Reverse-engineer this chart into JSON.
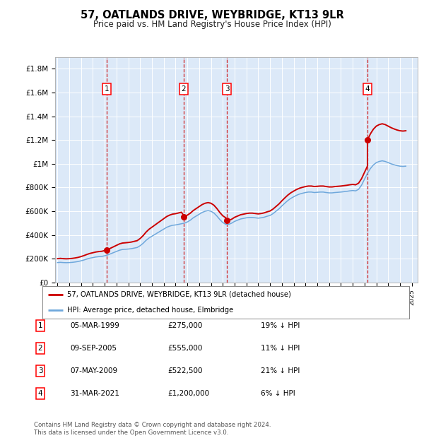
{
  "title": "57, OATLANDS DRIVE, WEYBRIDGE, KT13 9LR",
  "subtitle": "Price paid vs. HM Land Registry's House Price Index (HPI)",
  "background_color": "#ffffff",
  "plot_bg_color": "#dce9f8",
  "ylabel_ticks": [
    "£0",
    "£200K",
    "£400K",
    "£600K",
    "£800K",
    "£1M",
    "£1.2M",
    "£1.4M",
    "£1.6M",
    "£1.8M"
  ],
  "ytick_values": [
    0,
    200000,
    400000,
    600000,
    800000,
    1000000,
    1200000,
    1400000,
    1600000,
    1800000
  ],
  "ylim": [
    0,
    1900000
  ],
  "xlim_start": 1994.8,
  "xlim_end": 2025.5,
  "purchases": [
    {
      "label": "1",
      "date": 1999.18,
      "price": 275000,
      "pct": "19% ↓ HPI",
      "date_str": "05-MAR-1999"
    },
    {
      "label": "2",
      "date": 2005.69,
      "price": 555000,
      "pct": "11% ↓ HPI",
      "date_str": "09-SEP-2005"
    },
    {
      "label": "3",
      "date": 2009.35,
      "price": 522500,
      "pct": "21% ↓ HPI",
      "date_str": "07-MAY-2009"
    },
    {
      "label": "4",
      "date": 2021.25,
      "price": 1200000,
      "pct": "6% ↓ HPI",
      "date_str": "31-MAR-2021"
    }
  ],
  "hpi_line_color": "#6fa8dc",
  "price_line_color": "#cc0000",
  "dashed_line_color": "#cc0000",
  "legend_label_price": "57, OATLANDS DRIVE, WEYBRIDGE, KT13 9LR (detached house)",
  "legend_label_hpi": "HPI: Average price, detached house, Elmbridge",
  "footnote1": "Contains HM Land Registry data © Crown copyright and database right 2024.",
  "footnote2": "This data is licensed under the Open Government Licence v3.0.",
  "hpi_data": {
    "years": [
      1995.0,
      1995.25,
      1995.5,
      1995.75,
      1996.0,
      1996.25,
      1996.5,
      1996.75,
      1997.0,
      1997.25,
      1997.5,
      1997.75,
      1998.0,
      1998.25,
      1998.5,
      1998.75,
      1999.0,
      1999.25,
      1999.5,
      1999.75,
      2000.0,
      2000.25,
      2000.5,
      2000.75,
      2001.0,
      2001.25,
      2001.5,
      2001.75,
      2002.0,
      2002.25,
      2002.5,
      2002.75,
      2003.0,
      2003.25,
      2003.5,
      2003.75,
      2004.0,
      2004.25,
      2004.5,
      2004.75,
      2005.0,
      2005.25,
      2005.5,
      2005.75,
      2006.0,
      2006.25,
      2006.5,
      2006.75,
      2007.0,
      2007.25,
      2007.5,
      2007.75,
      2008.0,
      2008.25,
      2008.5,
      2008.75,
      2009.0,
      2009.25,
      2009.5,
      2009.75,
      2010.0,
      2010.25,
      2010.5,
      2010.75,
      2011.0,
      2011.25,
      2011.5,
      2011.75,
      2012.0,
      2012.25,
      2012.5,
      2012.75,
      2013.0,
      2013.25,
      2013.5,
      2013.75,
      2014.0,
      2014.25,
      2014.5,
      2014.75,
      2015.0,
      2015.25,
      2015.5,
      2015.75,
      2016.0,
      2016.25,
      2016.5,
      2016.75,
      2017.0,
      2017.25,
      2017.5,
      2017.75,
      2018.0,
      2018.25,
      2018.5,
      2018.75,
      2019.0,
      2019.25,
      2019.5,
      2019.75,
      2020.0,
      2020.25,
      2020.5,
      2020.75,
      2021.0,
      2021.25,
      2021.5,
      2021.75,
      2022.0,
      2022.25,
      2022.5,
      2022.75,
      2023.0,
      2023.25,
      2023.5,
      2023.75,
      2024.0,
      2024.25,
      2024.5
    ],
    "values": [
      168000,
      170000,
      168000,
      167000,
      168000,
      170000,
      173000,
      177000,
      183000,
      190000,
      198000,
      205000,
      210000,
      215000,
      218000,
      220000,
      225000,
      232000,
      242000,
      252000,
      262000,
      272000,
      278000,
      280000,
      282000,
      285000,
      290000,
      295000,
      310000,
      330000,
      355000,
      375000,
      390000,
      405000,
      420000,
      435000,
      450000,
      465000,
      475000,
      482000,
      485000,
      490000,
      495000,
      500000,
      510000,
      525000,
      545000,
      560000,
      575000,
      590000,
      600000,
      605000,
      600000,
      585000,
      560000,
      530000,
      505000,
      490000,
      490000,
      500000,
      515000,
      525000,
      535000,
      540000,
      545000,
      548000,
      548000,
      545000,
      542000,
      545000,
      550000,
      558000,
      565000,
      580000,
      600000,
      620000,
      645000,
      668000,
      690000,
      708000,
      722000,
      735000,
      745000,
      752000,
      758000,
      762000,
      762000,
      758000,
      760000,
      762000,
      762000,
      758000,
      755000,
      755000,
      758000,
      760000,
      762000,
      765000,
      768000,
      772000,
      775000,
      772000,
      785000,
      820000,
      870000,
      920000,
      960000,
      990000,
      1010000,
      1020000,
      1025000,
      1020000,
      1010000,
      1000000,
      992000,
      985000,
      980000,
      978000,
      980000
    ]
  }
}
